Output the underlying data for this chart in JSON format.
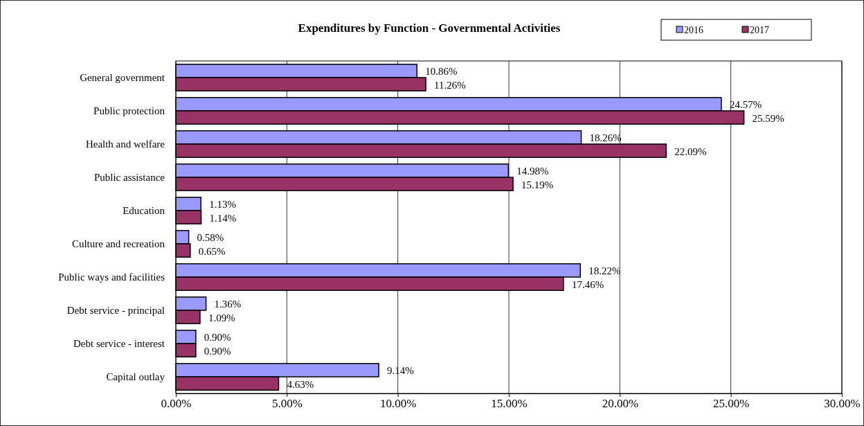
{
  "chart_data": {
    "type": "bar",
    "orientation": "horizontal",
    "title": "Expenditures  by Function - Governmental Activities",
    "categories": [
      "General government",
      "Public protection",
      "Health and welfare",
      "Public assistance",
      "Education",
      "Culture and recreation",
      "Public ways and facilities",
      "Debt service - principal",
      "Debt service - interest",
      "Capital outlay"
    ],
    "series": [
      {
        "name": "2016",
        "color": "#9999ff",
        "values": [
          10.86,
          24.57,
          18.26,
          14.98,
          1.13,
          0.58,
          18.22,
          1.36,
          0.9,
          9.14
        ],
        "value_labels": [
          "10.86%",
          "24.57%",
          "18.26%",
          "14.98%",
          "1.13%",
          "0.58%",
          "18.22%",
          "1.36%",
          "0.90%",
          "9.14%"
        ]
      },
      {
        "name": "2017",
        "color": "#993366",
        "values": [
          11.26,
          25.59,
          22.09,
          15.19,
          1.14,
          0.65,
          17.46,
          1.09,
          0.9,
          4.63
        ],
        "value_labels": [
          "11.26%",
          "25.59%",
          "22.09%",
          "15.19%",
          "1.14%",
          "0.65%",
          "17.46%",
          "1.09%",
          "0.90%",
          "4.63%"
        ]
      }
    ],
    "xlim": [
      0,
      30
    ],
    "xticks": [
      {
        "value": 0,
        "label": "0.00%"
      },
      {
        "value": 5,
        "label": "5.00%"
      },
      {
        "value": 10,
        "label": "10.00%"
      },
      {
        "value": 15,
        "label": "15.00%"
      },
      {
        "value": 20,
        "label": "20.00%"
      },
      {
        "value": 25,
        "label": "25.00%"
      },
      {
        "value": 30,
        "label": "30.00%"
      }
    ],
    "grid": "x",
    "legend": "top right"
  }
}
